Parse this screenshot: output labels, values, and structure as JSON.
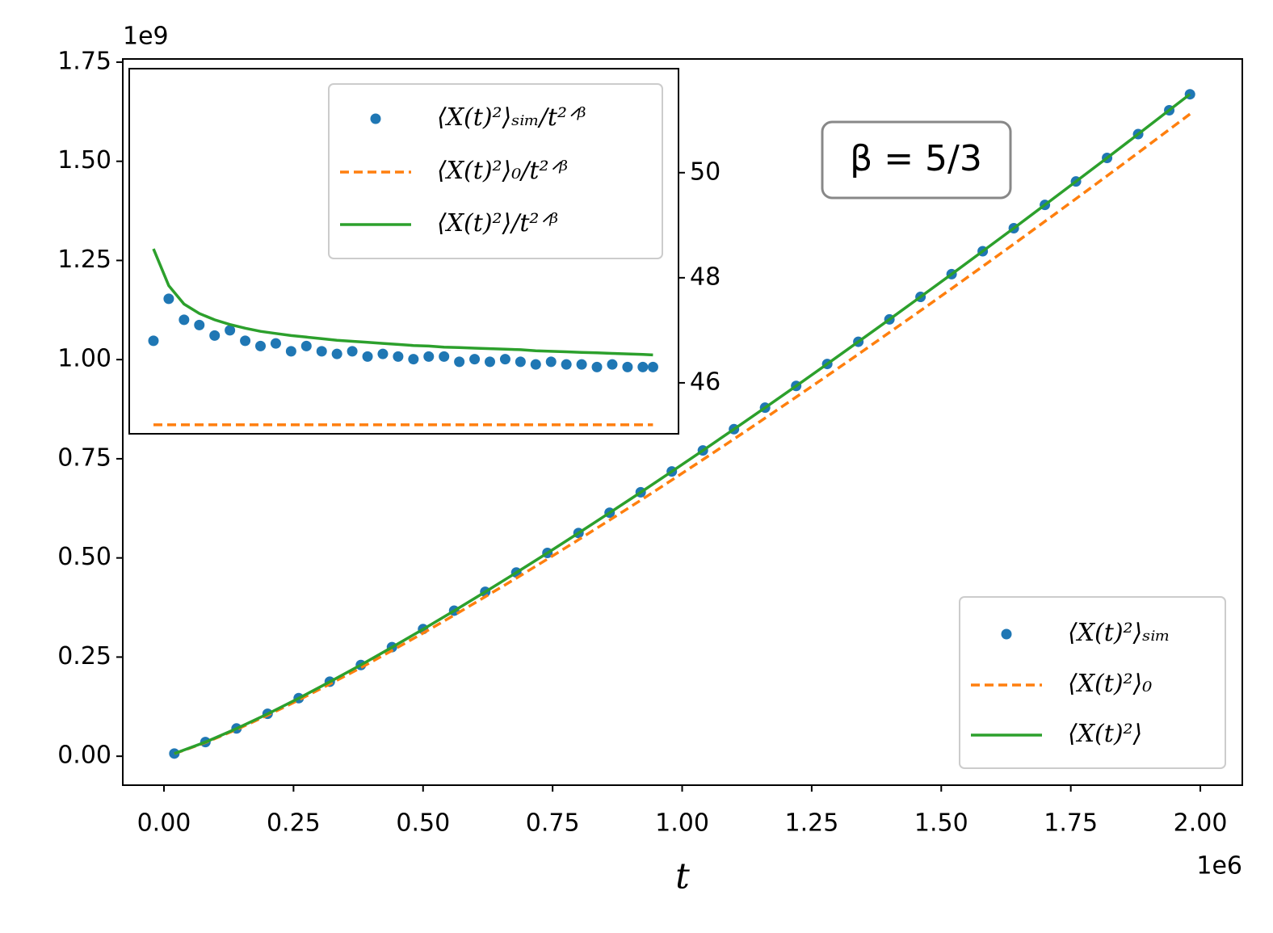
{
  "chart_data": [
    {
      "type": "line",
      "annotation": "β = 5/3",
      "xlabel": "t",
      "x_offset_label": "1e6",
      "y_offset_label": "1e9",
      "x": [
        0.02,
        0.08,
        0.14,
        0.2,
        0.26,
        0.32,
        0.38,
        0.44,
        0.5,
        0.56,
        0.62,
        0.68,
        0.74,
        0.8,
        0.86,
        0.92,
        0.98,
        1.04,
        1.1,
        1.16,
        1.22,
        1.28,
        1.34,
        1.4,
        1.46,
        1.52,
        1.58,
        1.64,
        1.7,
        1.76,
        1.82,
        1.88,
        1.94,
        1.98
      ],
      "xlim": [
        -0.0795,
        2.081
      ],
      "ylim": [
        -0.073,
        1.758
      ],
      "xticks": [
        {
          "value": 0,
          "label": "0.00"
        },
        0.25,
        {
          "value": 0.5,
          "label": "0.50"
        },
        0.75,
        {
          "value": 1,
          "label": "1.00"
        },
        1.25,
        {
          "value": 1.5,
          "label": "1.50"
        },
        1.75,
        {
          "value": 2,
          "label": "2.00"
        }
      ],
      "yticks": [
        {
          "value": 0,
          "label": "0.00"
        },
        0.25,
        {
          "value": 0.5,
          "label": "0.50"
        },
        0.75,
        {
          "value": 1,
          "label": "1.00"
        },
        1.25,
        {
          "value": 1.5,
          "label": "1.50"
        },
        1.75
      ],
      "legend": "lower right",
      "series": [
        {
          "name": "⟨X(t)²⟩ₛᵢₘ",
          "color": "#1f77b4",
          "style": "dots",
          "values": [
            0.0068,
            0.0357,
            0.07,
            0.107,
            0.1465,
            0.188,
            0.23,
            0.275,
            0.3205,
            0.367,
            0.4145,
            0.4632,
            0.5126,
            0.5628,
            0.614,
            0.6655,
            0.718,
            0.771,
            0.8246,
            0.8788,
            0.9337,
            0.989,
            1.045,
            1.1013,
            1.1581,
            1.2154,
            1.2732,
            1.3313,
            1.39,
            1.4491,
            1.5085,
            1.5685,
            1.6287,
            1.669
          ]
        },
        {
          "name": "⟨X(t)²⟩₀",
          "color": "#ff7f0e",
          "style": "dashed",
          "values": [
            0.0065,
            0.0344,
            0.0674,
            0.1034,
            0.1417,
            0.1819,
            0.2234,
            0.2664,
            0.3105,
            0.3557,
            0.4019,
            0.449,
            0.497,
            0.5458,
            0.5954,
            0.6454,
            0.6963,
            0.7477,
            0.7998,
            0.8524,
            0.9056,
            0.9593,
            1.0136,
            1.0683,
            1.1234,
            1.1789,
            1.235,
            1.2914,
            1.3484,
            1.4057,
            1.4633,
            1.5215,
            1.5799,
            1.619
          ]
        },
        {
          "name": "⟨X(t)²⟩",
          "color": "#2ca02c",
          "style": "solid",
          "values": [
            0.0067,
            0.0355,
            0.0695,
            0.1066,
            0.1461,
            0.1875,
            0.2303,
            0.2746,
            0.3201,
            0.3667,
            0.4143,
            0.4629,
            0.5124,
            0.5627,
            0.6138,
            0.6654,
            0.7178,
            0.7708,
            0.8245,
            0.8788,
            0.9336,
            0.989,
            1.0449,
            1.1013,
            1.1581,
            1.2154,
            1.2732,
            1.3313,
            1.3901,
            1.4492,
            1.5086,
            1.5686,
            1.6288,
            1.6691
          ]
        }
      ]
    },
    {
      "type": "line",
      "x": [
        0.02,
        0.08,
        0.14,
        0.2,
        0.26,
        0.32,
        0.38,
        0.44,
        0.5,
        0.56,
        0.62,
        0.68,
        0.74,
        0.8,
        0.86,
        0.92,
        0.98,
        1.04,
        1.1,
        1.16,
        1.22,
        1.28,
        1.34,
        1.4,
        1.46,
        1.52,
        1.58,
        1.64,
        1.7,
        1.76,
        1.82,
        1.88,
        1.94,
        1.98
      ],
      "xlim": [
        -0.075,
        2.08
      ],
      "ylim": [
        45.03,
        51.98
      ],
      "yticks": [
        46,
        48,
        50
      ],
      "legend": "upper right",
      "series": [
        {
          "name": "⟨X(t)²⟩ₛᵢₘ/t²ᐟᵝ",
          "color": "#1f77b4",
          "style": "dots",
          "values": [
            46.8,
            47.6,
            47.2,
            47.1,
            46.9,
            47.0,
            46.8,
            46.7,
            46.75,
            46.6,
            46.7,
            46.6,
            46.55,
            46.6,
            46.5,
            46.55,
            46.5,
            46.45,
            46.5,
            46.5,
            46.4,
            46.45,
            46.4,
            46.45,
            46.4,
            46.35,
            46.4,
            46.35,
            46.35,
            46.3,
            46.35,
            46.3,
            46.3,
            46.3
          ]
        },
        {
          "name": "⟨X(t)²⟩₀/t²ᐟᵝ",
          "color": "#ff7f0e",
          "style": "dashed",
          "x": [
            0.02,
            1.98
          ],
          "values": [
            45.2,
            45.2
          ]
        },
        {
          "name": "⟨X(t)²⟩/t²ᐟᵝ",
          "color": "#2ca02c",
          "style": "solid",
          "values": [
            48.55,
            47.85,
            47.5,
            47.32,
            47.2,
            47.11,
            47.04,
            46.98,
            46.94,
            46.9,
            46.87,
            46.84,
            46.81,
            46.79,
            46.77,
            46.75,
            46.73,
            46.71,
            46.7,
            46.68,
            46.67,
            46.66,
            46.65,
            46.64,
            46.63,
            46.61,
            46.6,
            46.59,
            46.58,
            46.57,
            46.56,
            46.55,
            46.54,
            46.53
          ]
        }
      ]
    }
  ]
}
